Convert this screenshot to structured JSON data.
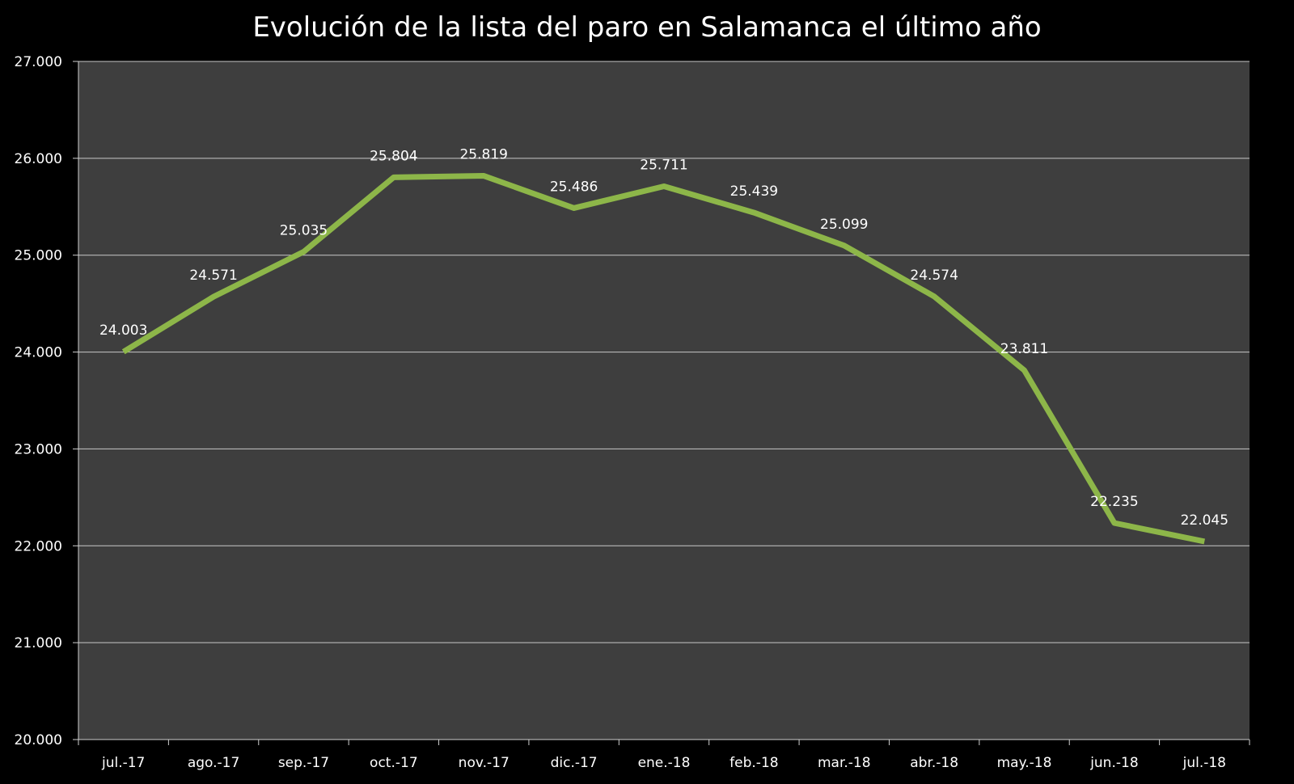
{
  "chart_data": {
    "type": "line",
    "title": "Evolución de la lista del paro en Salamanca el último año",
    "xlabel": "",
    "ylabel": "",
    "categories": [
      "jul.-17",
      "ago.-17",
      "sep.-17",
      "oct.-17",
      "nov.-17",
      "dic.-17",
      "ene.-18",
      "feb.-18",
      "mar.-18",
      "abr.-18",
      "may.-18",
      "jun.-18",
      "jul.-18"
    ],
    "series": [
      {
        "values": [
          24003,
          24571,
          25035,
          25804,
          25819,
          25486,
          25711,
          25439,
          25099,
          24574,
          23811,
          22235,
          22045
        ],
        "data_labels": [
          "24.003",
          "24.571",
          "25.035",
          "25.804",
          "25.819",
          "25.486",
          "25.711",
          "25.439",
          "25.099",
          "24.574",
          "23.811",
          "22.235",
          "22.045"
        ],
        "color": "#8db649"
      }
    ],
    "ylim": [
      20000,
      27000
    ],
    "y_ticks": [
      20000,
      21000,
      22000,
      23000,
      24000,
      25000,
      26000,
      27000
    ],
    "y_tick_labels": [
      "20.000",
      "21.000",
      "22.000",
      "23.000",
      "24.000",
      "25.000",
      "26.000",
      "27.000"
    ],
    "grid": true,
    "legend": "none",
    "colors": {
      "background": "#000000",
      "plot_area": "#3e3e3e",
      "gridline": "#c8c8c8",
      "axis": "#cfcfcf",
      "text": "#ffffff",
      "line": "#8db649"
    }
  }
}
